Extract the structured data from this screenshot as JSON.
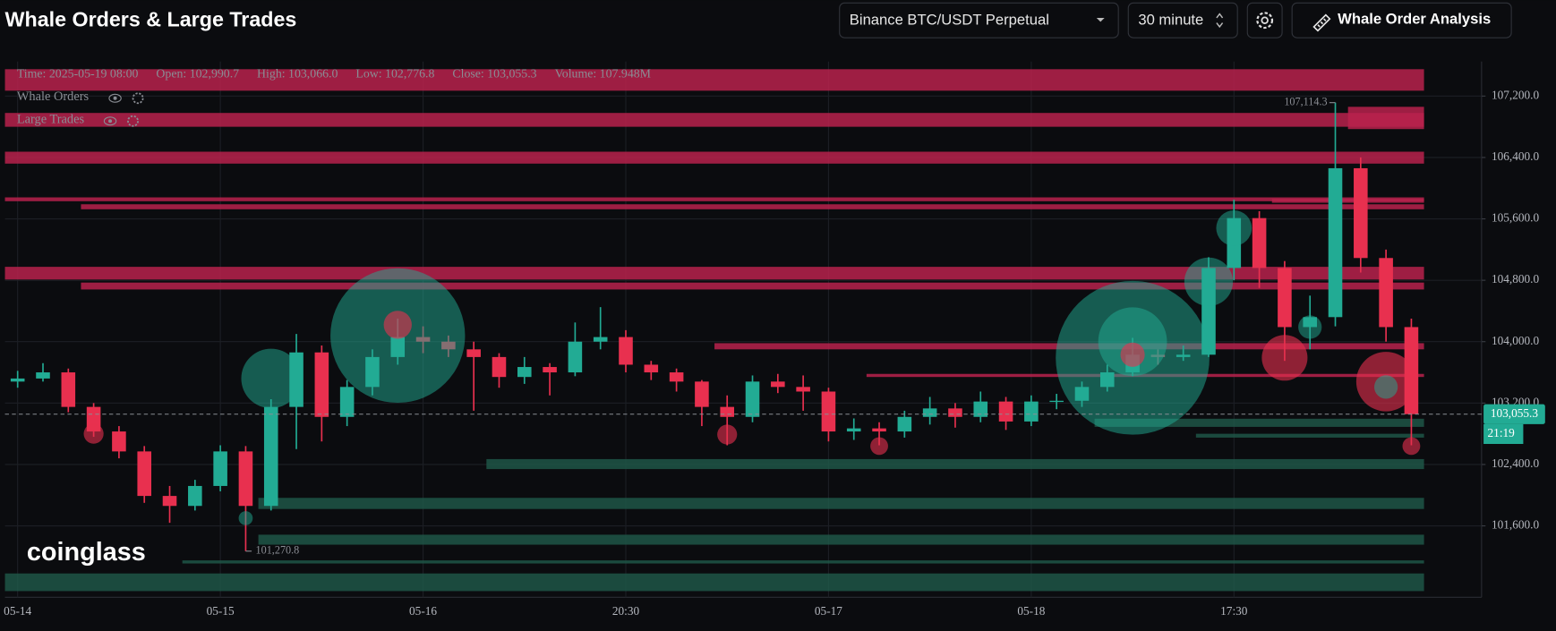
{
  "header": {
    "title": "Whale Orders & Large Trades",
    "exchange": "Binance BTC/USDT Perpetual",
    "interval": "30 minute",
    "button": "Whale Order Analysis"
  },
  "chart_data": {
    "type": "candlestick",
    "info": [
      "Time: 2025-05-19 08:00",
      "Open: 102,990.7",
      "High: 103,066.0",
      "Low: 102,776.8",
      "Close: 103,055.3",
      "Volume: 107.948M"
    ],
    "overlays": [
      "Whale Orders",
      "Large Trades"
    ],
    "watermark": "coinglass",
    "categories": [
      "05-14",
      null,
      null,
      null,
      null,
      null,
      null,
      null,
      "05-15",
      null,
      null,
      null,
      null,
      null,
      null,
      null,
      "05-16",
      null,
      null,
      null,
      null,
      null,
      null,
      null,
      "20:30",
      null,
      null,
      null,
      null,
      null,
      null,
      null,
      "05-17",
      null,
      null,
      null,
      null,
      null,
      null,
      null,
      "05-18",
      null,
      null,
      null,
      null,
      null,
      null,
      null,
      "17:30",
      null,
      null,
      null,
      null,
      null,
      null,
      null
    ],
    "open": [
      103480,
      103520,
      103600,
      103150,
      102830,
      102570,
      101990,
      101860,
      102120,
      102570,
      101860,
      103150,
      103860,
      103020,
      103410,
      103800,
      104060,
      104000,
      103900,
      103800,
      103540,
      103670,
      103600,
      104000,
      104060,
      103700,
      103600,
      103480,
      103150,
      103020,
      103480,
      103410,
      103350,
      102830,
      102870,
      102830,
      103020,
      103130,
      103020,
      103220,
      102960,
      103220,
      103230,
      103410,
      103600,
      103830,
      103800,
      103830,
      104960,
      105610,
      104960,
      104190,
      104320,
      106260,
      105090,
      104190
    ],
    "high": [
      103620,
      103720,
      103650,
      103200,
      102900,
      102640,
      102120,
      102200,
      102650,
      102640,
      103250,
      104100,
      103950,
      103500,
      103900,
      104300,
      104200,
      104080,
      104000,
      103850,
      103800,
      103720,
      104250,
      104450,
      104150,
      103750,
      103650,
      103500,
      103300,
      103560,
      103580,
      103560,
      103400,
      103000,
      102950,
      103100,
      103280,
      103200,
      103350,
      103280,
      103300,
      103320,
      103480,
      103700,
      104050,
      103900,
      103950,
      105100,
      105850,
      105700,
      105050,
      104600,
      107114.3,
      106400,
      105200,
      104300
    ],
    "low": [
      103400,
      103480,
      103080,
      102760,
      102480,
      101900,
      101640,
      101800,
      102050,
      101270.8,
      101800,
      102600,
      102700,
      102900,
      103300,
      103700,
      103850,
      103800,
      103100,
      103400,
      103450,
      103300,
      103550,
      103900,
      103600,
      103500,
      103350,
      102900,
      102650,
      102950,
      103330,
      103100,
      102700,
      102720,
      102650,
      102750,
      102920,
      102880,
      102950,
      102850,
      102900,
      103120,
      103150,
      103350,
      103550,
      103700,
      103750,
      103800,
      104800,
      104700,
      103750,
      103900,
      104200,
      104900,
      104000,
      102650
    ],
    "close": [
      103520,
      103600,
      103150,
      102830,
      102570,
      101990,
      101860,
      102120,
      102570,
      101860,
      103150,
      103860,
      103020,
      103410,
      103800,
      104060,
      104000,
      103900,
      103800,
      103540,
      103670,
      103600,
      104000,
      104060,
      103700,
      103600,
      103480,
      103150,
      103020,
      103480,
      103410,
      103350,
      102830,
      102870,
      102830,
      103020,
      103130,
      103020,
      103220,
      102960,
      103220,
      103230,
      103410,
      103600,
      103830,
      103800,
      103830,
      104960,
      105610,
      104960,
      104190,
      104320,
      106260,
      105090,
      104190,
      103055.3
    ],
    "up_color": "#22ab94",
    "down_color": "#e8304f",
    "ylim": [
      100670,
      107650
    ],
    "yticks": [
      {
        "value": 101600,
        "label": "101,600.0"
      },
      {
        "value": 102400,
        "label": "102,400.0"
      },
      {
        "value": 103200,
        "label": "103,200.0"
      },
      {
        "value": 104000,
        "label": "104,000.0"
      },
      {
        "value": 104800,
        "label": "104,800.0"
      },
      {
        "value": 105600,
        "label": "105,600.0"
      },
      {
        "value": 106400,
        "label": "106,400.0"
      },
      {
        "value": 107200,
        "label": "107,200.0"
      }
    ],
    "grid": true,
    "annotations": [
      {
        "value": 107114.3,
        "label": "107,114.3"
      },
      {
        "value": 101270.8,
        "label": "101,270.8"
      }
    ],
    "price_marker": {
      "value": 103055.3,
      "label": "103,055.3",
      "countdown": "21:19"
    },
    "sell_color": "#b8224c",
    "buy_color": "#1f5a4a",
    "whale_orders": [
      {
        "low": 107270,
        "high": 107550,
        "from": 0,
        "side": "sell"
      },
      {
        "low": 106800,
        "high": 106980,
        "from": 0,
        "side": "sell"
      },
      {
        "low": 106320,
        "high": 106475,
        "from": 0,
        "side": "sell"
      },
      {
        "low": 105830,
        "high": 105880,
        "from": 0,
        "side": "sell"
      },
      {
        "low": 105725,
        "high": 105790,
        "from": 3,
        "side": "sell"
      },
      {
        "low": 104810,
        "high": 104975,
        "from": 0,
        "side": "sell"
      },
      {
        "low": 104680,
        "high": 104770,
        "from": 3,
        "side": "sell"
      },
      {
        "low": 103900,
        "high": 103980,
        "from": 28,
        "side": "sell"
      },
      {
        "low": 103540,
        "high": 103580,
        "from": 34,
        "side": "sell"
      },
      {
        "low": 105810,
        "high": 105860,
        "from": 50,
        "side": "sell"
      },
      {
        "low": 106770,
        "high": 107060,
        "from": 53,
        "side": "sell"
      },
      {
        "low": 102890,
        "high": 102996,
        "from": 43,
        "side": "buy"
      },
      {
        "low": 102750,
        "high": 102800,
        "from": 47,
        "side": "buy"
      },
      {
        "low": 102340,
        "high": 102470,
        "from": 19,
        "side": "buy"
      },
      {
        "low": 101820,
        "high": 101965,
        "from": 10,
        "side": "buy"
      },
      {
        "low": 101355,
        "high": 101485,
        "from": 10,
        "side": "buy"
      },
      {
        "low": 101110,
        "high": 101150,
        "from": 7,
        "side": "buy"
      },
      {
        "low": 100750,
        "high": 100980,
        "from": 0,
        "side": "buy"
      }
    ],
    "large_trades": [
      {
        "index": 15,
        "price": 104080,
        "size": 46,
        "side": "buy"
      },
      {
        "index": 10,
        "price": 103520,
        "size": 9,
        "side": "buy"
      },
      {
        "index": 44,
        "price": 103790,
        "size": 60,
        "side": "buy"
      },
      {
        "index": 44,
        "price": 104000,
        "size": 12,
        "side": "buy"
      },
      {
        "index": 44,
        "price": 103830,
        "size": 1.5,
        "side": "sell"
      },
      {
        "index": 15,
        "price": 104220,
        "size": 2,
        "side": "sell"
      },
      {
        "index": 47,
        "price": 104780,
        "size": 6,
        "side": "buy"
      },
      {
        "index": 48,
        "price": 105480,
        "size": 3.2,
        "side": "buy"
      },
      {
        "index": 50,
        "price": 103790,
        "size": 5.3,
        "side": "sell"
      },
      {
        "index": 51,
        "price": 104190,
        "size": 1.4,
        "side": "buy"
      },
      {
        "index": 54,
        "price": 103480,
        "size": 9,
        "side": "sell"
      },
      {
        "index": 54,
        "price": 103410,
        "size": 1.4,
        "side": "buy"
      },
      {
        "index": 34,
        "price": 102640,
        "size": 0.8,
        "side": "sell"
      },
      {
        "index": 28,
        "price": 102790,
        "size": 1,
        "side": "sell"
      },
      {
        "index": 9,
        "price": 101700,
        "size": 0.5,
        "side": "buy"
      },
      {
        "index": 3,
        "price": 102800,
        "size": 1,
        "side": "sell"
      },
      {
        "index": 55,
        "price": 102640,
        "size": 0.8,
        "side": "sell"
      }
    ]
  }
}
